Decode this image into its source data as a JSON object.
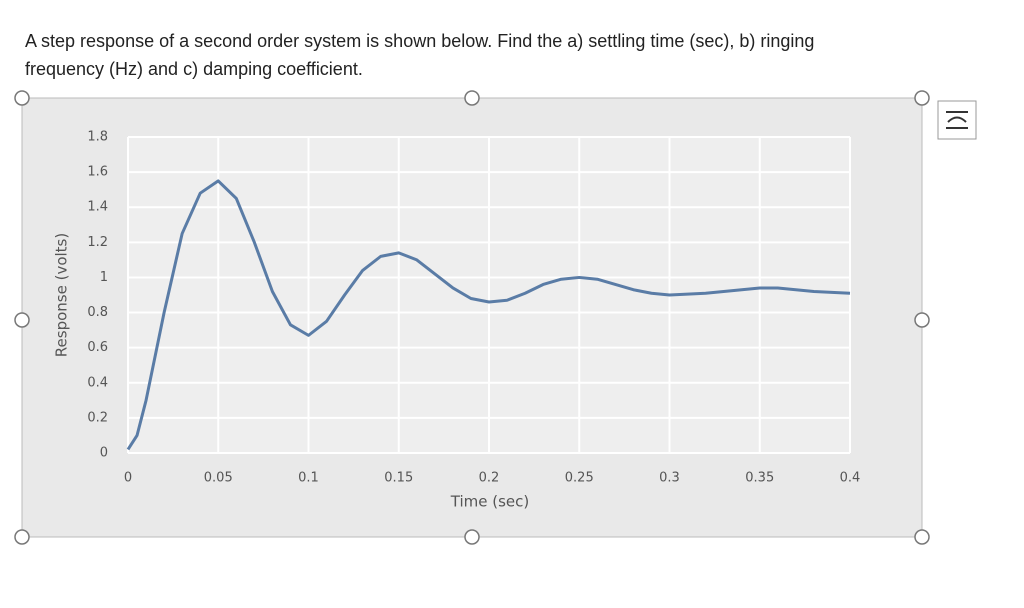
{
  "question": {
    "lines": [
      "A step response of a second order system is shown below. Find the a) settling time (sec), b) ringing",
      "frequency (Hz) and c) damping coefficient."
    ]
  },
  "chart_data": {
    "type": "line",
    "xlabel": "Time (sec)",
    "ylabel": "Response (volts)",
    "x": [
      0,
      0.005,
      0.01,
      0.02,
      0.03,
      0.04,
      0.05,
      0.06,
      0.07,
      0.08,
      0.09,
      0.1,
      0.11,
      0.12,
      0.13,
      0.14,
      0.15,
      0.16,
      0.17,
      0.18,
      0.19,
      0.2,
      0.21,
      0.22,
      0.23,
      0.24,
      0.25,
      0.26,
      0.27,
      0.28,
      0.29,
      0.3,
      0.32,
      0.34,
      0.35,
      0.36,
      0.38,
      0.4
    ],
    "values": [
      0.02,
      0.1,
      0.3,
      0.8,
      1.25,
      1.48,
      1.55,
      1.45,
      1.2,
      0.92,
      0.73,
      0.67,
      0.75,
      0.9,
      1.04,
      1.12,
      1.14,
      1.1,
      1.02,
      0.94,
      0.88,
      0.86,
      0.87,
      0.91,
      0.96,
      0.99,
      1.0,
      0.99,
      0.96,
      0.93,
      0.91,
      0.9,
      0.91,
      0.93,
      0.94,
      0.94,
      0.92,
      0.91
    ],
    "color": "#5a7ca6",
    "xlim": [
      0,
      0.4
    ],
    "xticks": [
      0,
      0.05,
      0.1,
      0.15,
      0.2,
      0.25,
      0.3,
      0.35,
      0.4
    ],
    "ylim": [
      0,
      1.8
    ],
    "yticks": [
      0,
      0.2,
      0.4,
      0.6,
      0.8,
      1,
      1.2,
      1.4,
      1.6,
      1.8
    ],
    "grid": true
  }
}
